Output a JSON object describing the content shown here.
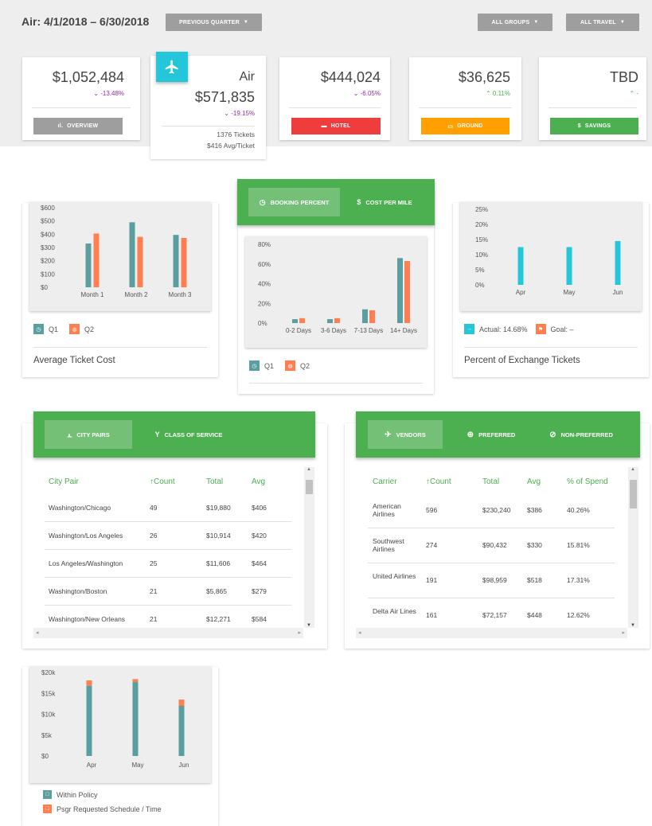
{
  "header": {
    "title": "Air: 4/1/2018 – 6/30/2018",
    "period_button": "PREVIOUS QUARTER",
    "groups_button": "ALL GROUPS",
    "travel_button": "ALL TRAVEL"
  },
  "kpis": {
    "overview": {
      "amount": "$1,052,484",
      "change": "-13.48%",
      "button": "OVERVIEW"
    },
    "air": {
      "label": "Air",
      "amount": "$571,835",
      "change": "-19.15%",
      "tickets": "1376 Tickets",
      "avg": "$416 Avg/Ticket"
    },
    "hotel": {
      "amount": "$444,024",
      "change": "-6.05%",
      "button": "HOTEL"
    },
    "ground": {
      "amount": "$36,625",
      "change": "0.11%",
      "button": "GROUND"
    },
    "savings": {
      "amount": "TBD",
      "change": "-",
      "button": "SAVINGS"
    }
  },
  "colors": {
    "q1": "#5b9ea0",
    "q2": "#ff7f50",
    "accent": "#26c6da",
    "green": "#4caf50",
    "red": "#ef3c3c",
    "orange": "#ffa000",
    "purple": "#9c27b0"
  },
  "avg_ticket": {
    "title": "Average Ticket Cost",
    "legend": [
      "Q1",
      "Q2"
    ],
    "chart_data": {
      "type": "bar",
      "categories": [
        "Month 1",
        "Month 2",
        "Month 3"
      ],
      "series": [
        {
          "name": "Q1",
          "values": [
            330,
            490,
            395
          ]
        },
        {
          "name": "Q2",
          "values": [
            405,
            380,
            372
          ]
        }
      ],
      "ylim": [
        0,
        600
      ],
      "yticks": [
        "$0",
        "$100",
        "$200",
        "$300",
        "$400",
        "$500",
        "$600"
      ]
    }
  },
  "booking": {
    "tabs": [
      "BOOKING PERCENT",
      "COST PER MILE"
    ],
    "legend": [
      "Q1",
      "Q2"
    ],
    "chart_data": {
      "type": "bar",
      "categories": [
        "0-2 Days",
        "3-6 Days",
        "7-13 Days",
        "14+ Days"
      ],
      "series": [
        {
          "name": "Q1",
          "values": [
            4,
            4,
            14,
            66
          ]
        },
        {
          "name": "Q2",
          "values": [
            5,
            5,
            13,
            63
          ]
        }
      ],
      "ylim": [
        0,
        80
      ],
      "yticks": [
        "0%",
        "20%",
        "40%",
        "60%",
        "80%"
      ]
    }
  },
  "exchange": {
    "title": "Percent of Exchange Tickets",
    "legend_actual": "Actual: 14.68%",
    "legend_goal": "Goal: –",
    "chart_data": {
      "type": "bar",
      "categories": [
        "Apr",
        "May",
        "Jun"
      ],
      "values": [
        12.5,
        12.5,
        14.5
      ],
      "ylim": [
        0,
        25
      ],
      "yticks": [
        "0%",
        "5%",
        "10%",
        "15%",
        "20%",
        "25%"
      ]
    }
  },
  "city_pairs": {
    "tabs": [
      "CITY PAIRS",
      "CLASS OF SERVICE"
    ],
    "headers": [
      "City Pair",
      "↑Count",
      "Total",
      "Avg"
    ],
    "rows": [
      [
        "Washington/Chicago",
        "49",
        "$19,880",
        "$406"
      ],
      [
        "Washington/Los Angeles",
        "26",
        "$10,914",
        "$420"
      ],
      [
        "Los Angeles/Washington",
        "25",
        "$11,606",
        "$464"
      ],
      [
        "Washington/Boston",
        "21",
        "$5,865",
        "$279"
      ],
      [
        "Washington/New Orleans",
        "21",
        "$12,271",
        "$584"
      ]
    ]
  },
  "vendors": {
    "tabs": [
      "VENDORS",
      "PREFERRED",
      "NON-PREFERRED"
    ],
    "headers": [
      "Carrier",
      "↑Count",
      "Total",
      "Avg",
      "% of Spend"
    ],
    "rows": [
      [
        "American Airlines",
        "596",
        "$230,240",
        "$386",
        "40.26%"
      ],
      [
        "Southwest Airlines",
        "274",
        "$90,432",
        "$330",
        "15.81%"
      ],
      [
        "United Airlines",
        "191",
        "$98,959",
        "$518",
        "17.31%"
      ],
      [
        "Delta Air Lines",
        "161",
        "$72,157",
        "$448",
        "12.62%"
      ]
    ]
  },
  "policy": {
    "legend": [
      "Within Policy",
      "Psgr Requested Schedule / Time"
    ],
    "chart_data": {
      "type": "bar",
      "stacked": true,
      "categories": [
        "Apr",
        "May",
        "Jun"
      ],
      "series": [
        {
          "name": "Within Policy",
          "values": [
            16800,
            17700,
            12000
          ]
        },
        {
          "name": "Psgr Requested Schedule / Time",
          "values": [
            1300,
            700,
            1500
          ]
        }
      ],
      "ylim": [
        0,
        20000
      ],
      "yticks": [
        "$0",
        "$5k",
        "$10k",
        "$15k",
        "$20k"
      ]
    }
  }
}
